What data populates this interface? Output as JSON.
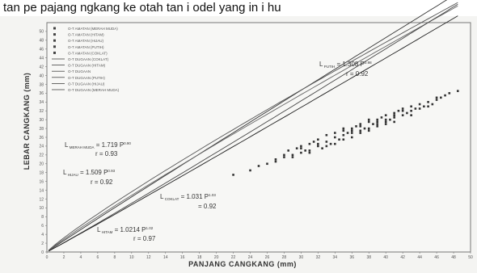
{
  "header_text": "tan pe pajang ngkang ke otah tan i odel yang in i hu",
  "chart_data": {
    "type": "scatter",
    "xlabel": "PANJANG CANGKANG (mm)",
    "ylabel": "LEBAR CANGKANG (mm)",
    "xlim": [
      0,
      50
    ],
    "ylim": [
      0,
      52
    ],
    "x_ticks": [
      "0",
      "2",
      "4",
      "6",
      "8",
      "10",
      "12",
      "14",
      "16",
      "18",
      "20",
      "22",
      "24",
      "26",
      "28",
      "30",
      "32",
      "34",
      "36",
      "38",
      "40",
      "42",
      "44",
      "46",
      "48",
      "50"
    ],
    "y_ticks": [
      "0",
      "2",
      "4",
      "6",
      "8",
      "10",
      "12",
      "14",
      "16",
      "18",
      "20",
      "22",
      "24",
      "26",
      "28",
      "30",
      "32",
      "34",
      "36",
      "38",
      "40",
      "42",
      "44",
      "46",
      "48",
      "50"
    ],
    "legend": [
      "O-T AMATAN (MERAH MUDA)",
      "O-T AMATAN (HITAM)",
      "O-T AMATAN (HIJAU)",
      "O-T AMATAN (PUTIH)",
      "O-T AMATAN (COKLAT)",
      "O-T DUGAAN (COKLAT)",
      "O-T DUGAAN (HITAM)",
      "O-T DUGAAN",
      "O-T DUGAAN (PUTIH)",
      "O-T DUGAAN (HIJAU)",
      "O-T DUGAAN (MERAH MUDA)"
    ],
    "series": [
      {
        "name": "O-T DUGAAN (PUTIH)",
        "a": 1.308,
        "b": 0.98
      },
      {
        "name": "O-T DUGAAN (MERAH MUDA)",
        "a": 1.719,
        "b": 0.9
      },
      {
        "name": "O-T DUGAAN (HIJAU)",
        "a": 1.509,
        "b": 0.93
      },
      {
        "name": "O-T DUGAAN (COKLAT)",
        "a": 1.031,
        "b": 1.03
      },
      {
        "name": "O-T DUGAAN (HITAM)",
        "a": 1.0214,
        "b": 1.02
      }
    ],
    "scatter_points": [
      [
        28,
        21.5
      ],
      [
        28.5,
        23
      ],
      [
        29,
        22
      ],
      [
        29.5,
        23.5
      ],
      [
        30,
        22.5
      ],
      [
        30,
        24
      ],
      [
        30.5,
        23
      ],
      [
        31,
        24.5
      ],
      [
        31,
        22.5
      ],
      [
        31.5,
        25
      ],
      [
        32,
        24
      ],
      [
        32,
        25.5
      ],
      [
        32.5,
        23.5
      ],
      [
        33,
        25
      ],
      [
        33,
        26.5
      ],
      [
        33.5,
        24.5
      ],
      [
        34,
        26
      ],
      [
        34,
        27
      ],
      [
        34.5,
        25.5
      ],
      [
        35,
        26.5
      ],
      [
        35,
        28
      ],
      [
        35.5,
        27
      ],
      [
        36,
        27.5
      ],
      [
        36,
        26
      ],
      [
        36.5,
        28.5
      ],
      [
        37,
        27
      ],
      [
        37,
        29
      ],
      [
        37.5,
        28
      ],
      [
        38,
        29.5
      ],
      [
        38,
        27.5
      ],
      [
        38.5,
        29
      ],
      [
        39,
        30
      ],
      [
        39,
        28.5
      ],
      [
        39.5,
        30.5
      ],
      [
        40,
        29.5
      ],
      [
        40,
        31
      ],
      [
        40.5,
        30
      ],
      [
        41,
        31.5
      ],
      [
        41,
        29.5
      ],
      [
        41.5,
        32
      ],
      [
        42,
        31
      ],
      [
        42,
        32.5
      ],
      [
        42.5,
        31.5
      ],
      [
        43,
        33
      ],
      [
        43,
        31
      ],
      [
        43.5,
        32.5
      ],
      [
        44,
        33.5
      ],
      [
        44.5,
        33
      ],
      [
        45,
        34
      ],
      [
        45.5,
        33.5
      ],
      [
        46,
        34.5
      ],
      [
        46.5,
        35
      ],
      [
        26,
        20
      ],
      [
        27,
        21
      ],
      [
        25,
        19.5
      ],
      [
        33,
        24
      ],
      [
        35,
        25.5
      ],
      [
        37,
        28.5
      ],
      [
        39,
        29
      ],
      [
        41,
        30.5
      ],
      [
        34,
        24.5
      ],
      [
        36,
        27
      ],
      [
        38,
        28
      ],
      [
        40,
        30
      ],
      [
        42,
        32
      ],
      [
        44,
        32.5
      ],
      [
        30,
        23.5
      ],
      [
        32,
        24.5
      ],
      [
        36,
        28
      ],
      [
        38,
        30
      ],
      [
        40,
        29
      ],
      [
        43,
        32
      ],
      [
        45,
        33
      ],
      [
        29,
        21.5
      ],
      [
        31,
        23
      ],
      [
        35,
        27.5
      ],
      [
        37,
        27.5
      ],
      [
        39,
        29.5
      ],
      [
        41,
        31
      ],
      [
        47,
        35.5
      ],
      [
        47.5,
        36
      ],
      [
        24,
        18.5
      ],
      [
        22,
        17.5
      ],
      [
        27,
        20.5
      ],
      [
        28,
        22
      ],
      [
        46,
        35
      ],
      [
        48.5,
        36.5
      ]
    ],
    "annotations": [
      {
        "main": "L",
        "sub": "PUTIH",
        "eq": " = 1.308 P",
        "exp": "0.98",
        "r": "r  = 0.92"
      },
      {
        "main": "L",
        "sub": "MERAH MUDA",
        "eq": " = 1.719 P",
        "exp": "0.90",
        "r": "r  = 0.93"
      },
      {
        "main": "L",
        "sub": "HIJAU",
        "eq": " = 1.509 P",
        "exp": "0.93",
        "r": "r  = 0.92"
      },
      {
        "main": "L",
        "sub": "COKLAT",
        "eq": " = 1.031 P",
        "exp": "1.03",
        "r": "= 0.92"
      },
      {
        "main": "L",
        "sub": "HITAM",
        "eq": " = 1.0214 P",
        "exp": "1.02",
        "r": "r  = 0.97"
      }
    ]
  }
}
